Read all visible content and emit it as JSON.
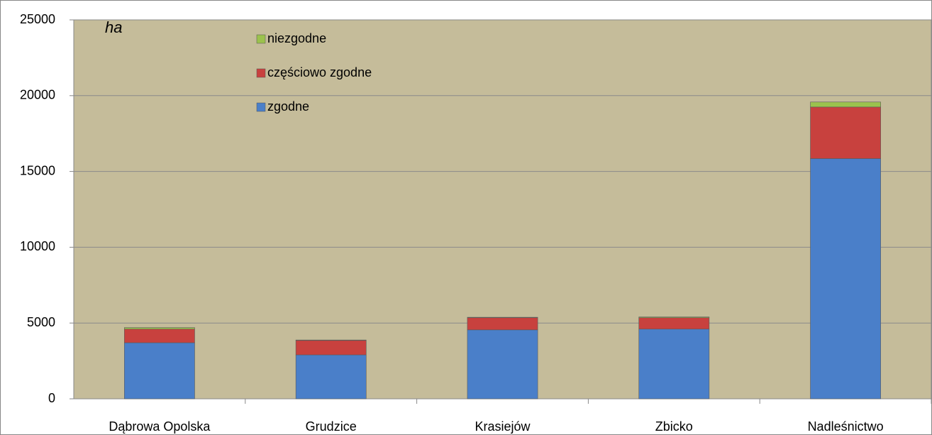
{
  "chart_data": {
    "type": "stacked_bar",
    "annotation": "ha",
    "categories": [
      "Dąbrowa Opolska",
      "Grudzice",
      "Krasiejów",
      "Zbicko",
      "Nadleśnictwo"
    ],
    "series": [
      {
        "name": "zgodne",
        "color": "#4a7fc9",
        "values": [
          3700,
          2900,
          4550,
          4600,
          15850
        ]
      },
      {
        "name": "częściowo zgodne",
        "color": "#c8413e",
        "values": [
          900,
          950,
          800,
          750,
          3400
        ]
      },
      {
        "name": "niezgodne",
        "color": "#9bc24d",
        "values": [
          100,
          30,
          30,
          50,
          330
        ]
      }
    ],
    "ylim": [
      0,
      25000
    ],
    "yticks": [
      0,
      5000,
      10000,
      15000,
      20000,
      25000
    ],
    "grid": true,
    "legend": "top-left",
    "background": "#c5bc9a"
  }
}
